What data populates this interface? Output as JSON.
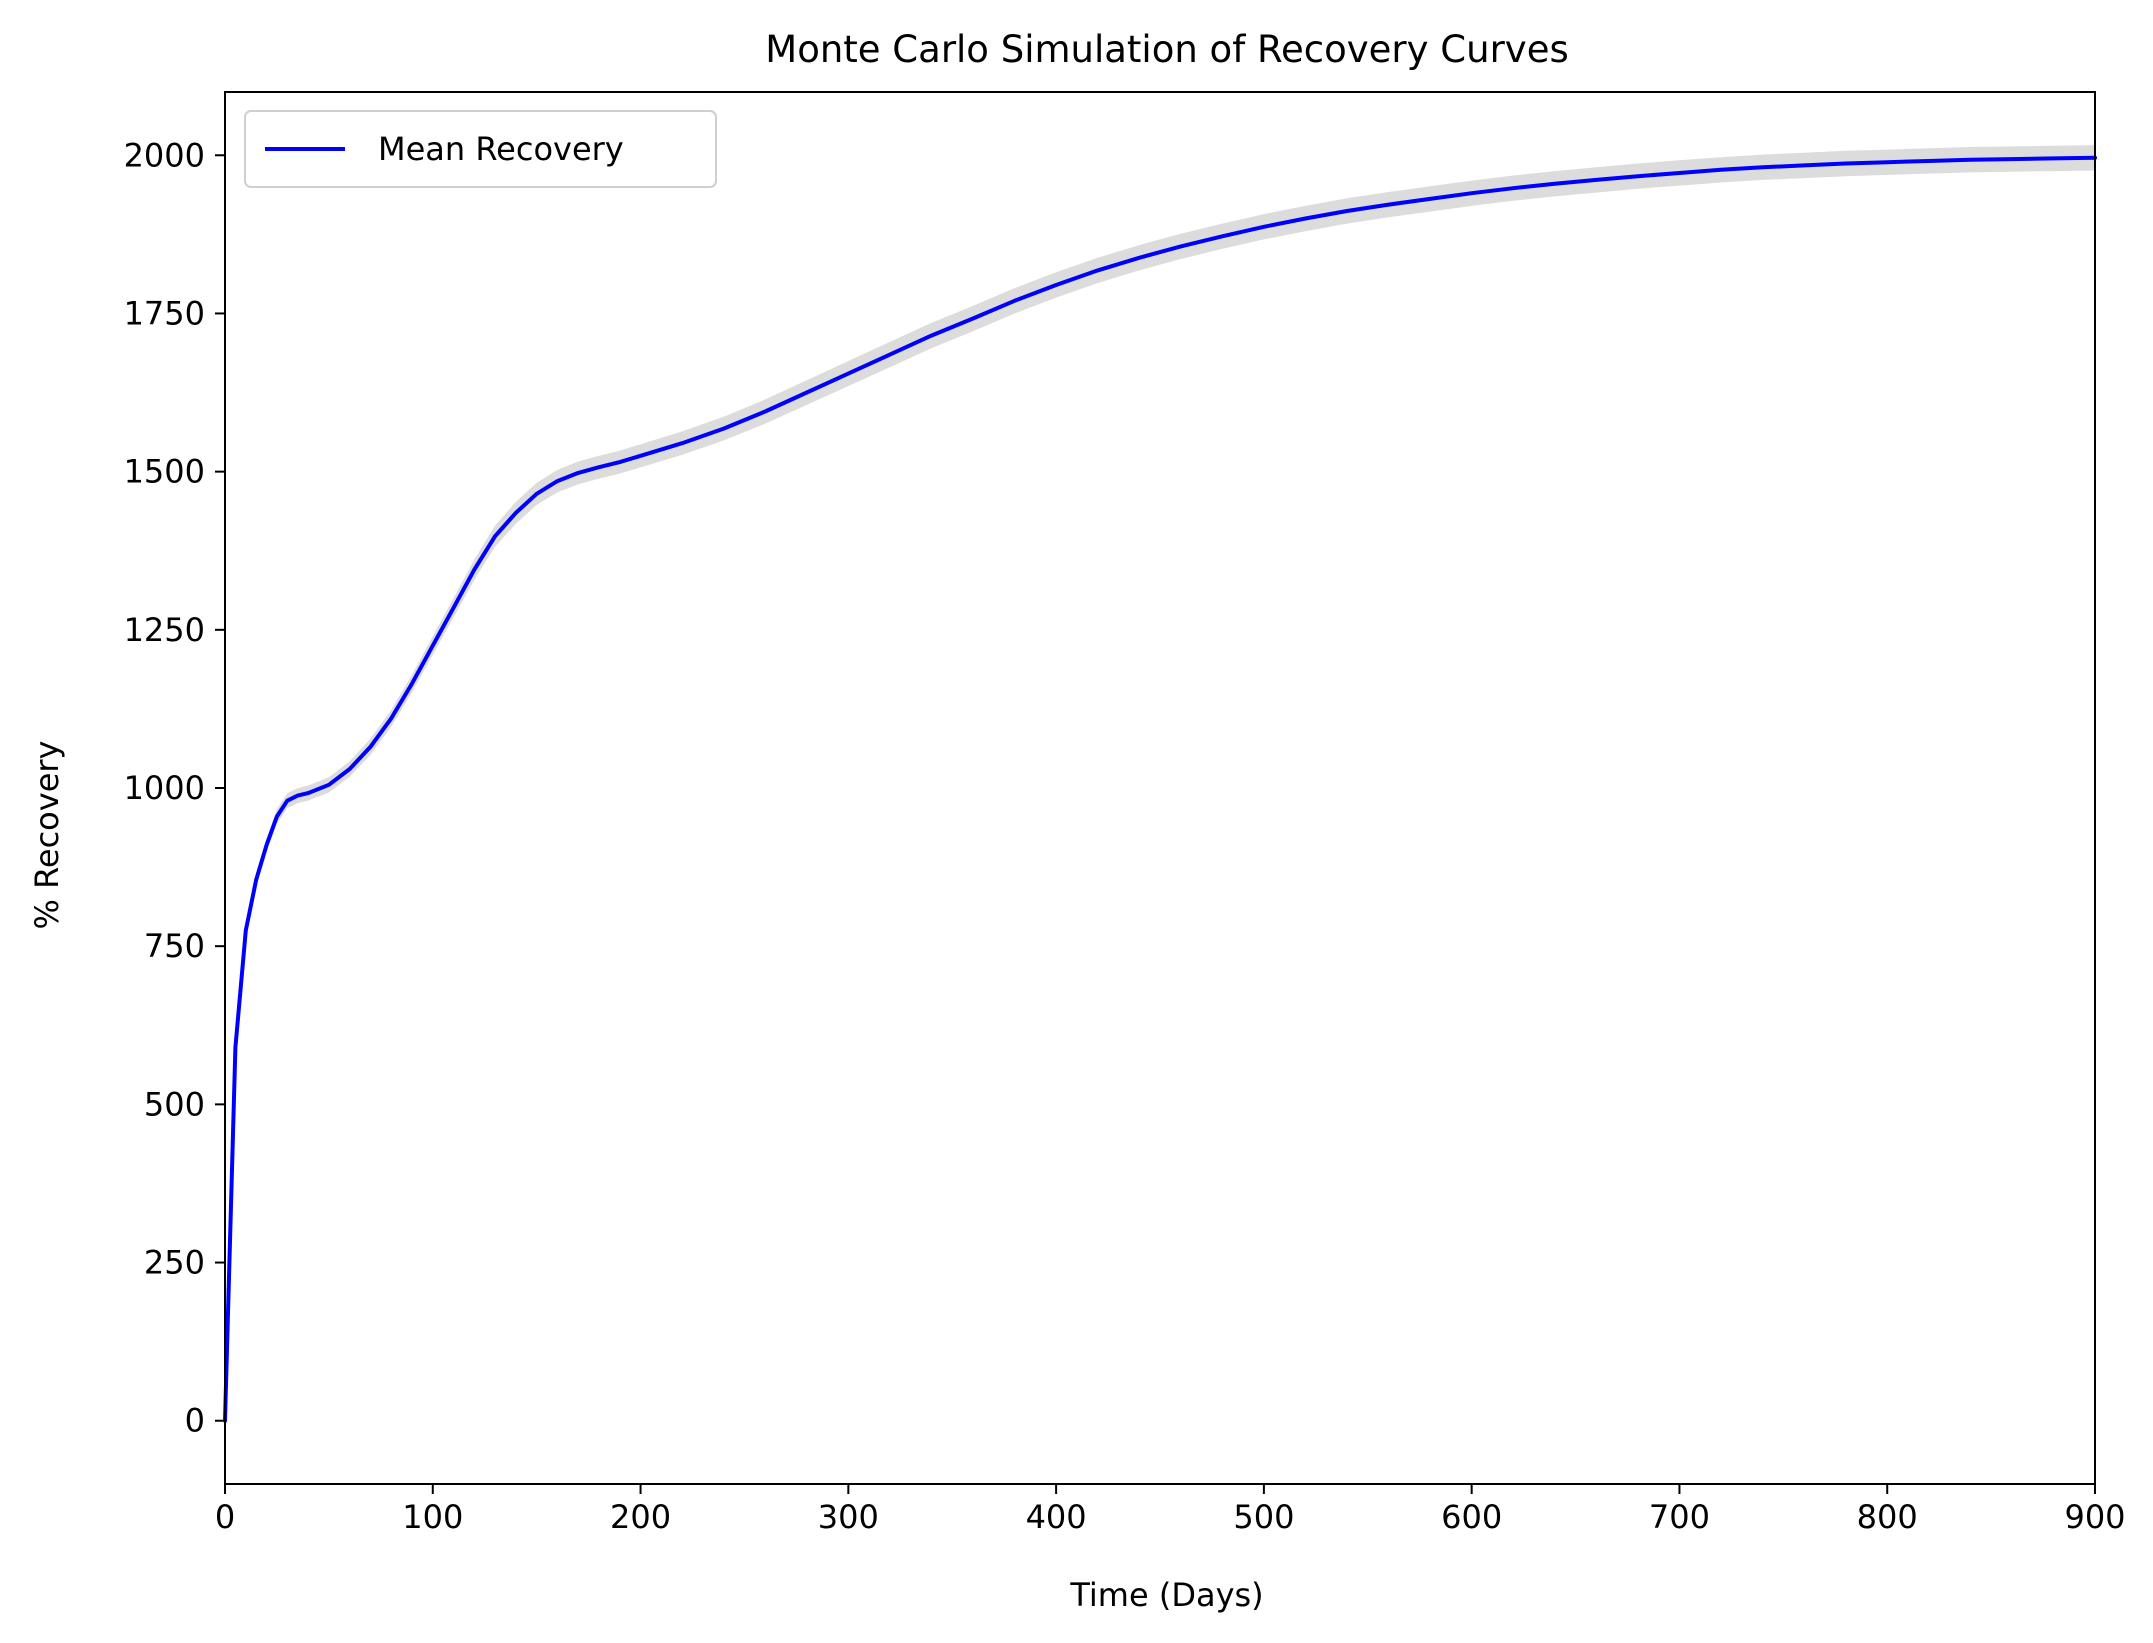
{
  "chart_data": {
    "type": "line",
    "title": "Monte Carlo Simulation of Recovery Curves",
    "xlabel": "Time (Days)",
    "ylabel": "% Recovery",
    "xlim": [
      0,
      900
    ],
    "ylim": [
      -100,
      2100
    ],
    "x_ticks": [
      0,
      100,
      200,
      300,
      400,
      500,
      600,
      700,
      800,
      900
    ],
    "x_tick_labels": [
      "0",
      "100",
      "200",
      "300",
      "400",
      "500",
      "600",
      "700",
      "800",
      "900"
    ],
    "y_ticks": [
      0,
      250,
      500,
      750,
      1000,
      1250,
      1500,
      1750,
      2000
    ],
    "y_tick_labels": [
      "0",
      "250",
      "500",
      "750",
      "1000",
      "1250",
      "1500",
      "1750",
      "2000"
    ],
    "grid": false,
    "legend": {
      "position": "top-left",
      "entries": [
        "Mean Recovery"
      ]
    },
    "colors": {
      "mean_line": "#0000ff",
      "simulation_band": "#d3d3d3"
    },
    "series": [
      {
        "name": "Mean Recovery",
        "x": [
          0,
          5,
          10,
          15,
          20,
          25,
          30,
          35,
          40,
          50,
          60,
          70,
          80,
          90,
          100,
          110,
          120,
          130,
          140,
          150,
          160,
          170,
          180,
          190,
          200,
          220,
          240,
          260,
          280,
          300,
          320,
          340,
          360,
          380,
          400,
          420,
          440,
          460,
          480,
          500,
          520,
          540,
          560,
          580,
          600,
          620,
          640,
          660,
          680,
          700,
          720,
          740,
          760,
          780,
          800,
          820,
          840,
          860,
          880,
          900
        ],
        "values": [
          0,
          590,
          775,
          855,
          910,
          955,
          980,
          988,
          992,
          1005,
          1030,
          1065,
          1110,
          1165,
          1225,
          1285,
          1345,
          1398,
          1435,
          1465,
          1485,
          1498,
          1507,
          1515,
          1525,
          1545,
          1568,
          1595,
          1625,
          1655,
          1685,
          1715,
          1742,
          1770,
          1795,
          1818,
          1838,
          1856,
          1872,
          1887,
          1900,
          1912,
          1922,
          1931,
          1940,
          1948,
          1955,
          1961,
          1967,
          1972,
          1977,
          1981,
          1984,
          1987,
          1989,
          1991,
          1993,
          1994,
          1995,
          1996
        ]
      }
    ]
  }
}
